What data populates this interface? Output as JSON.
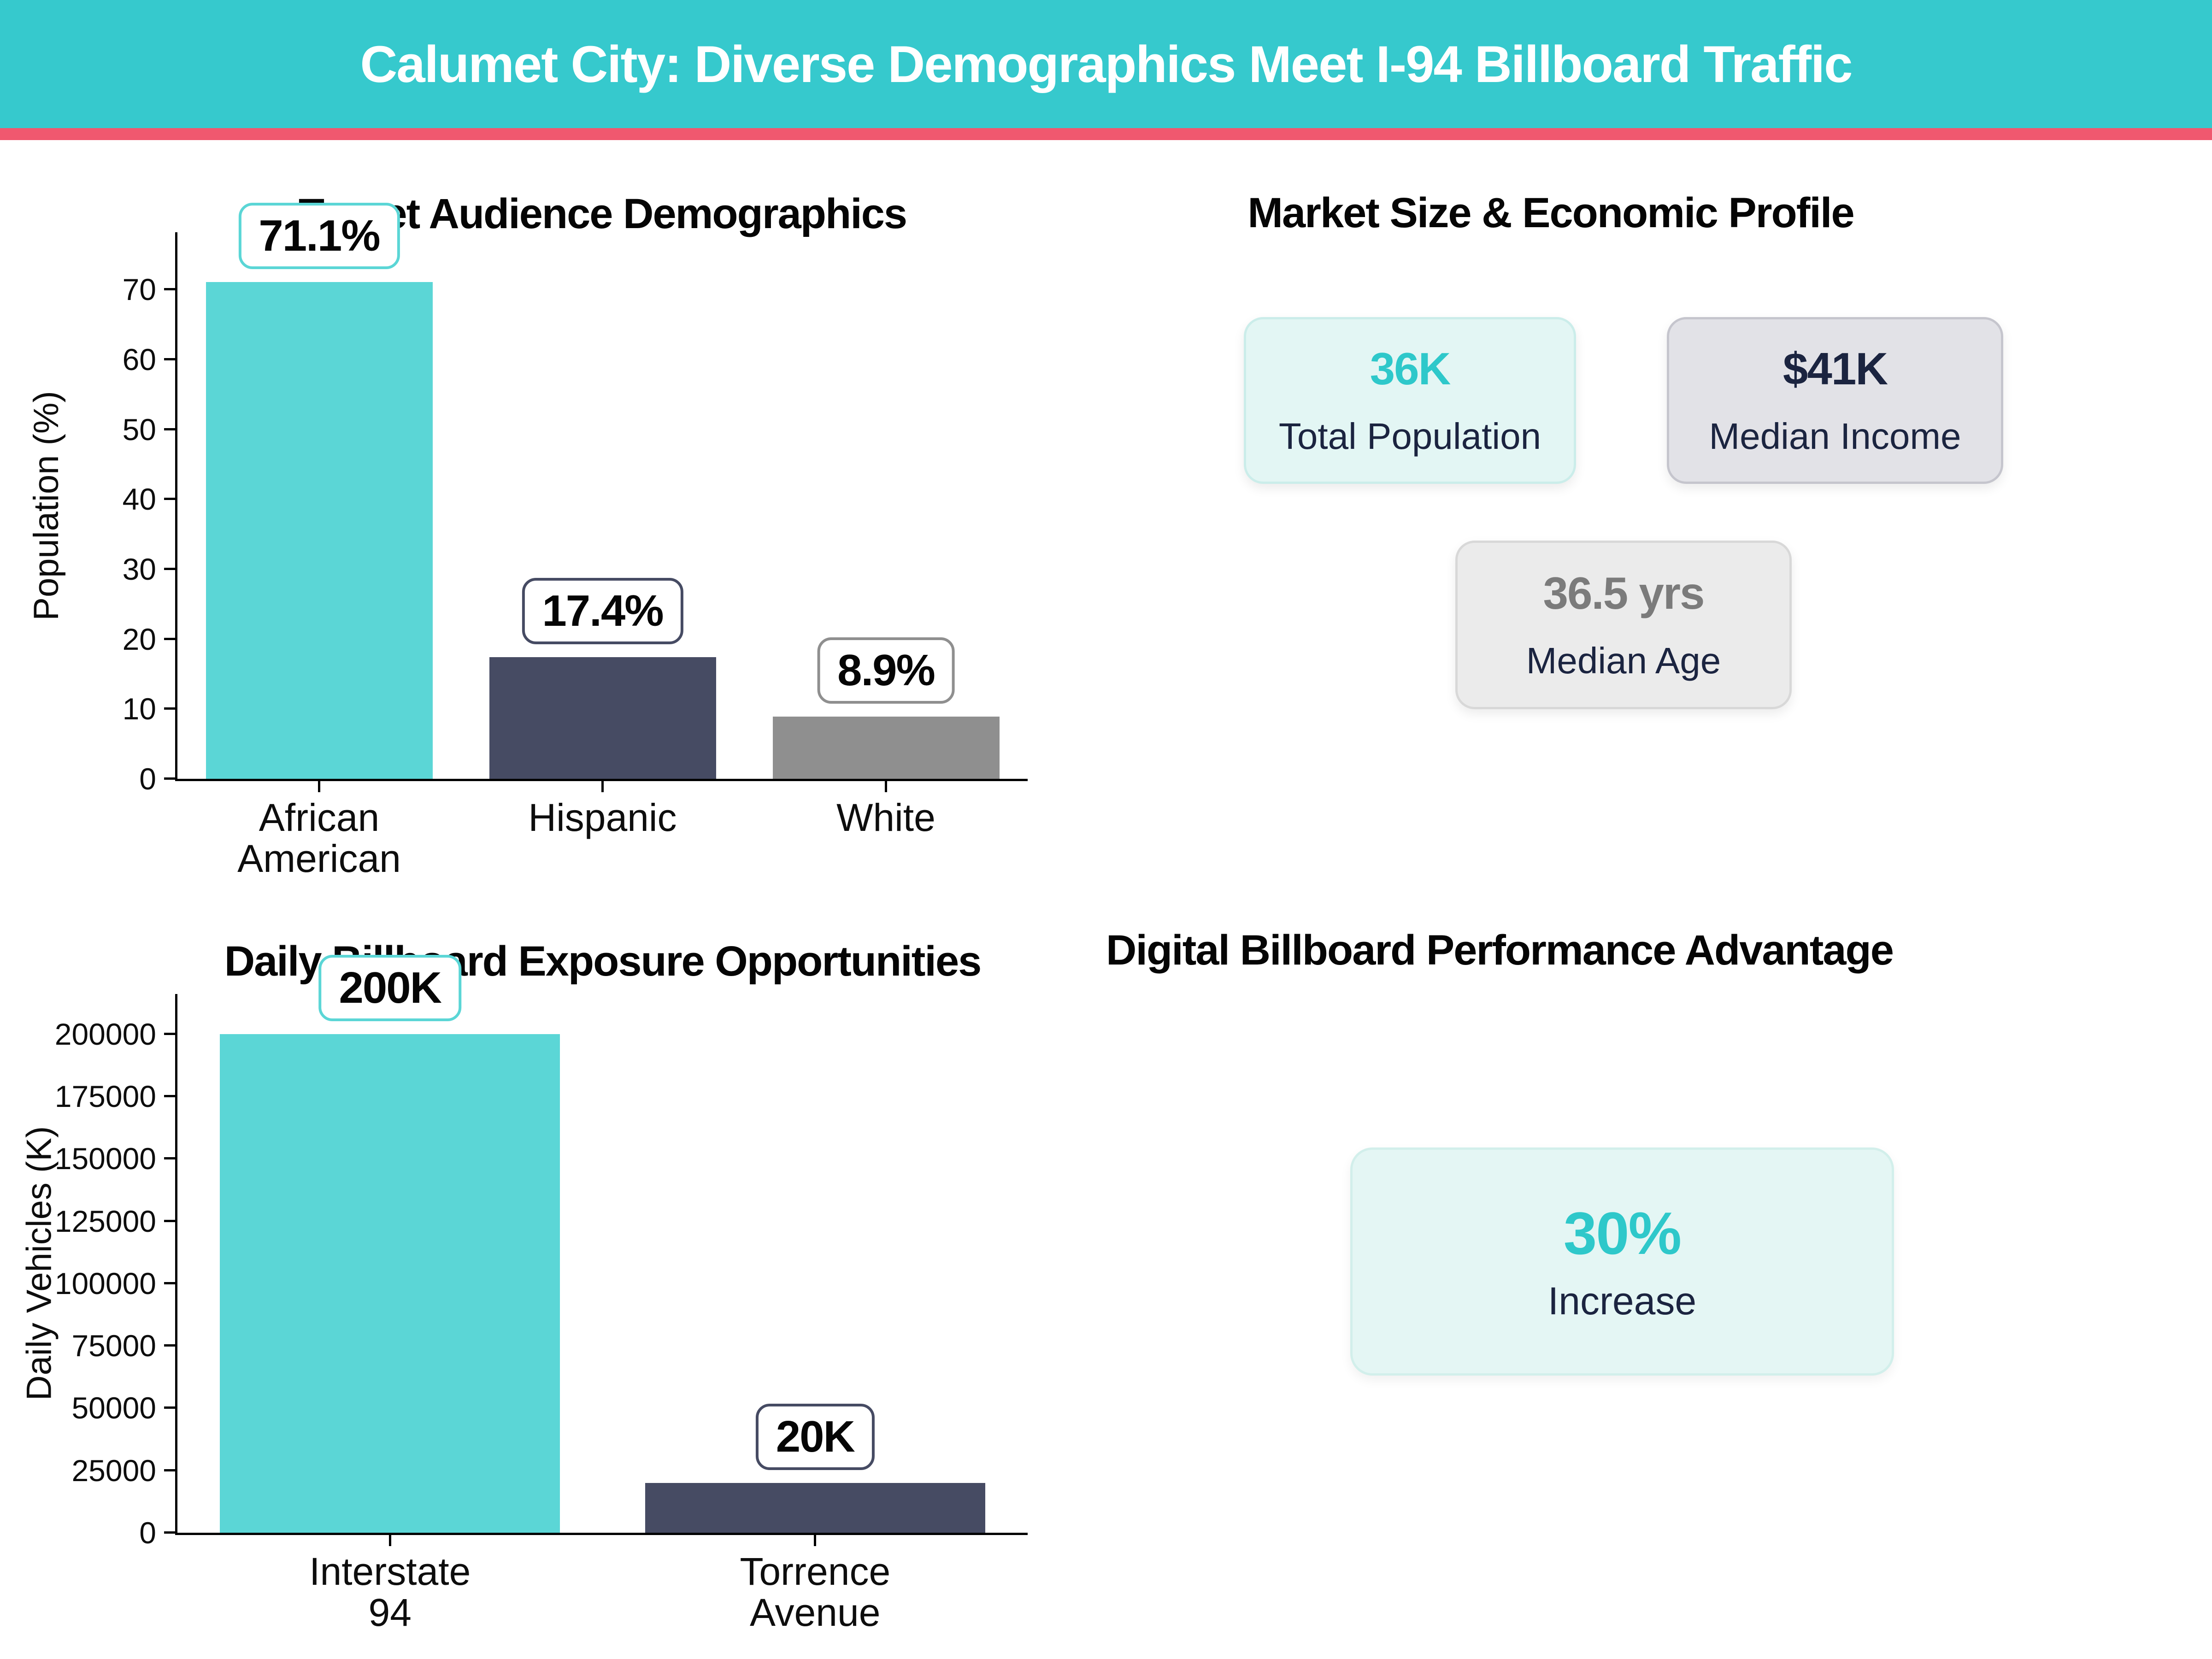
{
  "header": {
    "title": "Calumet City: Diverse Demographics Meet I-94 Billboard Traffic",
    "bg_color": "#36C9CD",
    "divider_color": "#F0586F"
  },
  "chart_data": [
    {
      "type": "bar",
      "title": "Target Audience Demographics",
      "xlabel": "",
      "ylabel": "Population (%)",
      "categories": [
        [
          "African",
          "American"
        ],
        [
          "Hispanic"
        ],
        [
          "White"
        ]
      ],
      "values": [
        71.1,
        17.4,
        8.9
      ],
      "value_labels": [
        "71.1%",
        "17.4%",
        "8.9%"
      ],
      "bar_colors": [
        "#5BD6D6",
        "#464B63",
        "#8F8F8F"
      ],
      "ylim": [
        0,
        78.2
      ],
      "yticks": [
        0,
        10,
        20,
        30,
        40,
        50,
        60,
        70
      ],
      "grid": false,
      "legend": null
    },
    {
      "type": "bar",
      "title": "Daily Billboard Exposure Opportunities",
      "xlabel": "",
      "ylabel": "Daily Vehicles (K)",
      "categories": [
        [
          "Interstate",
          "94"
        ],
        [
          "Torrence",
          "Avenue"
        ]
      ],
      "values": [
        200000,
        20000
      ],
      "value_labels": [
        "200K",
        "20K"
      ],
      "bar_colors": [
        "#5BD6D6",
        "#464B63"
      ],
      "ylim": [
        0,
        216000
      ],
      "yticks": [
        0,
        25000,
        50000,
        75000,
        100000,
        125000,
        150000,
        175000,
        200000
      ],
      "grid": false,
      "legend": null
    }
  ],
  "stats_panel": {
    "title": "Market Size & Economic Profile",
    "cards": [
      {
        "value": "36K",
        "label": "Total Population",
        "value_color": "#2EC8CA",
        "bg": "#E3F6F4",
        "border": "#CBEDEA"
      },
      {
        "value": "$41K",
        "label": "Median Income",
        "value_color": "#1B2440",
        "bg": "#E2E2E7",
        "border": "#C5C5CD"
      },
      {
        "value": "36.5 yrs",
        "label": "Median Age",
        "value_color": "#7B7B7B",
        "bg": "#EBEBEB",
        "border": "#D8D8D8"
      }
    ]
  },
  "perf_panel": {
    "title": "Digital Billboard Performance Advantage",
    "card": {
      "value": "30%",
      "label": "Increase",
      "value_color": "#2EC8CA",
      "bg": "#E4F6F4",
      "border": "#D2EFEB"
    }
  }
}
